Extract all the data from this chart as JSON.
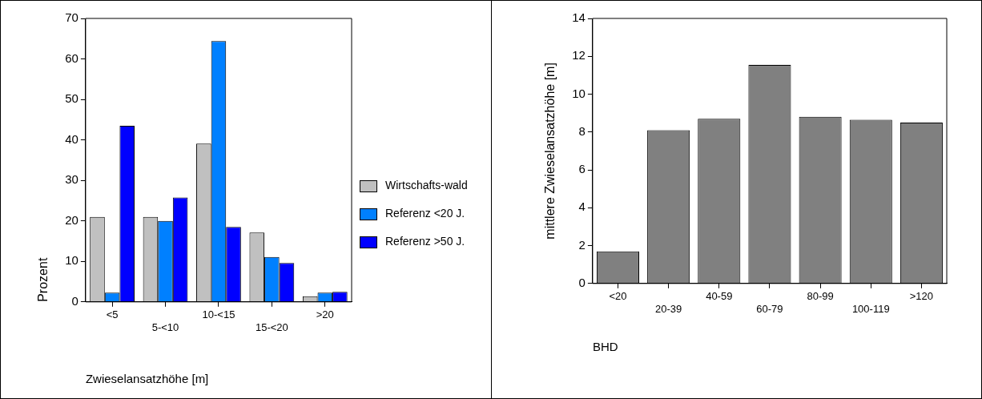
{
  "chart_data": [
    {
      "type": "bar",
      "xlabel": "Zwieselansatzhöhe [m]",
      "ylabel": "Prozent",
      "categories": [
        "<5",
        "5-<10",
        "10-<15",
        "15-<20",
        ">20"
      ],
      "ylim": [
        0,
        70
      ],
      "yticks": [
        0,
        10,
        20,
        30,
        40,
        50,
        60,
        70
      ],
      "legend": "right",
      "grid": false,
      "series": [
        {
          "name": "Wirtschafts-wald",
          "color": "#c0c0c0",
          "values": [
            21,
            21,
            39.1,
            17.1,
            1.4
          ]
        },
        {
          "name": "Referenz <20 J.",
          "color": "#0080ff",
          "values": [
            2.3,
            20,
            64.4,
            11.1,
            2.3
          ]
        },
        {
          "name": "Referenz >50 J.",
          "color": "#0000ff",
          "values": [
            43.5,
            25.8,
            18.5,
            9.6,
            2.5
          ]
        }
      ]
    },
    {
      "type": "bar",
      "xlabel": "BHD",
      "ylabel": "mittlere Zwieselansatzhöhe [m]",
      "categories": [
        "<20",
        "20-39",
        "40-59",
        "60-79",
        "80-99",
        "100-119",
        ">120"
      ],
      "ylim": [
        0,
        14
      ],
      "yticks": [
        0,
        2,
        4,
        6,
        8,
        10,
        12,
        14
      ],
      "legend": false,
      "grid": false,
      "series": [
        {
          "color": "#808080",
          "values": [
            1.7,
            8.1,
            8.7,
            11.55,
            8.8,
            8.65,
            8.5
          ]
        }
      ]
    }
  ]
}
